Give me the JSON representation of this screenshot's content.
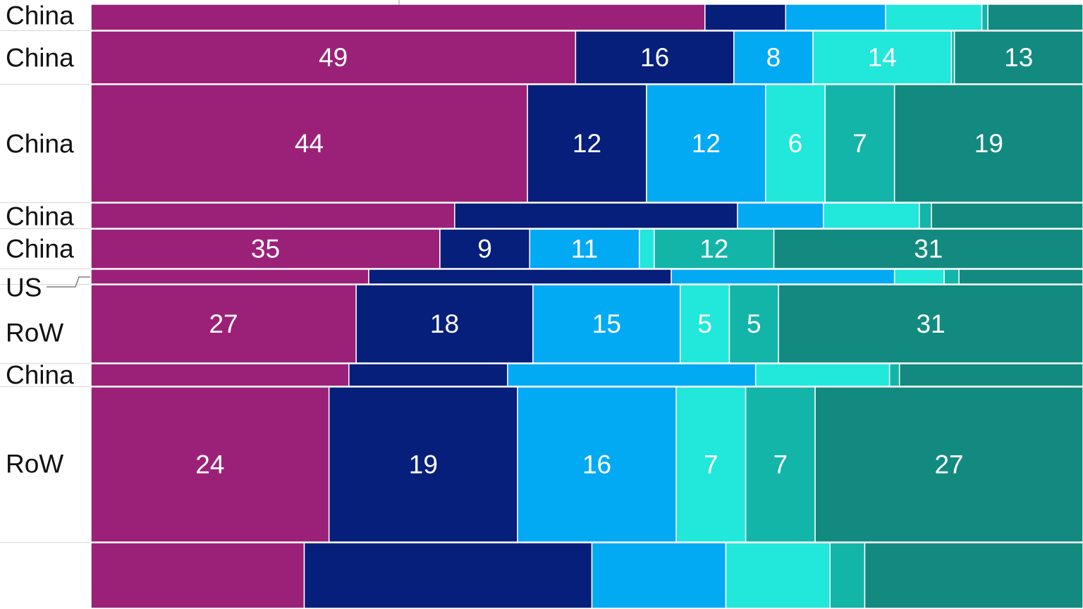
{
  "chart_data": {
    "type": "bar",
    "orientation": "horizontal",
    "stacked": "100%",
    "colors": [
      "#9b2178",
      "#061f7a",
      "#02aaf4",
      "#21e8da",
      "#13b5a8",
      "#138a80"
    ],
    "rows": [
      {
        "label": "China",
        "values": [
          51,
          6.7,
          8.3,
          8,
          0.5,
          7.9
        ],
        "labels": []
      },
      {
        "label": "China",
        "values": [
          49,
          16,
          8,
          14,
          0.3,
          13
        ],
        "labels": [
          "49",
          "16",
          "8",
          "14",
          "",
          "13"
        ]
      },
      {
        "label": "China",
        "values": [
          44,
          12,
          12,
          6,
          7,
          19
        ],
        "labels": [
          "44",
          "12",
          "12",
          "6",
          "7",
          "19"
        ]
      },
      {
        "label": "China",
        "values": [
          36,
          28,
          8.5,
          9.5,
          1.2,
          15
        ],
        "labels": []
      },
      {
        "label": "China",
        "values": [
          35,
          9,
          11,
          1.5,
          12,
          31
        ],
        "labels": [
          "35",
          "9",
          "11",
          "",
          "12",
          "31"
        ]
      },
      {
        "label": "US",
        "values": [
          28,
          30.5,
          22.5,
          5,
          1.5,
          12.5
        ],
        "labels": []
      },
      {
        "label": "RoW",
        "values": [
          27,
          18,
          15,
          5,
          5,
          31
        ],
        "labels": [
          "27",
          "18",
          "15",
          "5",
          "5",
          "31"
        ]
      },
      {
        "label": "China",
        "values": [
          26,
          16,
          25,
          13.5,
          1,
          18.5
        ],
        "labels": []
      },
      {
        "label": "RoW",
        "values": [
          24,
          19,
          16,
          7,
          7,
          27
        ],
        "labels": [
          "24",
          "19",
          "16",
          "7",
          "7",
          "27"
        ]
      },
      {
        "label": "",
        "values": [
          21.5,
          29,
          13.5,
          10.5,
          3.5,
          22
        ],
        "labels": []
      }
    ]
  }
}
